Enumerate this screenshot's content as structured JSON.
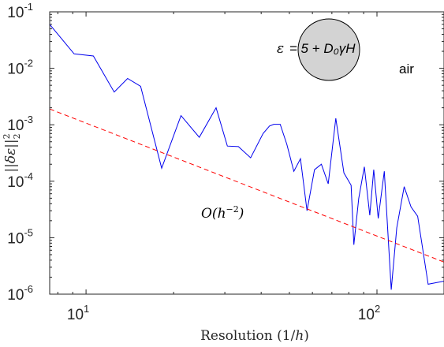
{
  "chart_data": {
    "type": "line",
    "xscale": "log",
    "yscale": "log",
    "xlim": [
      7.5,
      170
    ],
    "ylim": [
      1e-06,
      0.1
    ],
    "x_ticks": [
      {
        "value": 10,
        "base": "10",
        "exp": "1"
      },
      {
        "value": 100,
        "base": "10",
        "exp": "2"
      }
    ],
    "y_ticks": [
      {
        "value": 1e-06,
        "base": "10",
        "exp": "-6"
      },
      {
        "value": 1e-05,
        "base": "10",
        "exp": "-5"
      },
      {
        "value": 0.0001,
        "base": "10",
        "exp": "-4"
      },
      {
        "value": 0.001,
        "base": "10",
        "exp": "-3"
      },
      {
        "value": 0.01,
        "base": "10",
        "exp": "-2"
      },
      {
        "value": 0.1,
        "base": "10",
        "exp": "-1"
      }
    ],
    "xlabel": "Resolution (1/h)",
    "ylabel": "||δε||₂²",
    "series": [
      {
        "color": "#0000ee",
        "style": "solid",
        "x": [
          7.5,
          9.1,
          10.6,
          12.5,
          13.9,
          15.4,
          18.2,
          21.2,
          24.5,
          28.0,
          30.6,
          33.4,
          36.8,
          40.6,
          42.7,
          44.2,
          46.5,
          49.0,
          51.8,
          54.6,
          57.5,
          61.0,
          64.4,
          68.0,
          72.2,
          77.0,
          81.5,
          83.3,
          86.6,
          90.5,
          94.5,
          97.5,
          101.0,
          106.0,
          112.0,
          117.0,
          124.0,
          131.0,
          138.0,
          150.0,
          160.0,
          170.0
        ],
        "y": [
          0.06,
          0.018,
          0.0165,
          0.0038,
          0.0066,
          0.0048,
          0.00017,
          0.00145,
          0.0006,
          0.002,
          0.00042,
          0.00041,
          0.00026,
          0.0007,
          0.00095,
          0.00102,
          0.00102,
          0.00045,
          0.00015,
          0.00025,
          3e-05,
          0.00016,
          0.0002,
          9e-05,
          0.0013,
          0.00014,
          8.5e-05,
          7.5e-06,
          5e-05,
          0.00018,
          2.5e-05,
          0.00016,
          2.2e-05,
          0.00015,
          1.2e-06,
          1.5e-05,
          8e-05,
          3.5e-05,
          2.4e-05,
          1.5e-06,
          1.6e-06,
          1.7e-06
        ]
      },
      {
        "color": "#ff0000",
        "style": "dashed",
        "x": [
          7.5,
          170
        ],
        "y": [
          0.0019,
          3.7e-06
        ]
      }
    ],
    "annotations": {
      "order": "O(h^{-2})",
      "material_rhs": "5 + D₀γH",
      "medium": "air"
    },
    "inset": {
      "fill": "#d3d3d3",
      "stroke": "#000000"
    },
    "grid": false
  }
}
